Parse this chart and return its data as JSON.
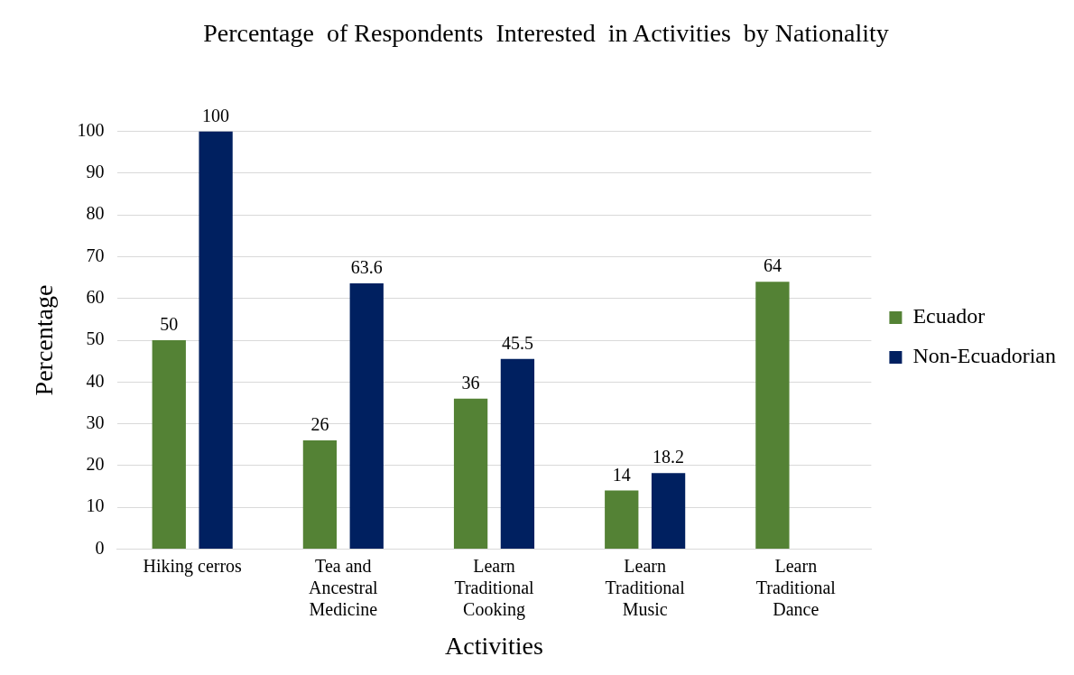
{
  "chart_data": {
    "type": "bar",
    "title": "Percentage  of Respondents  Interested  in Activities  by Nationality",
    "xlabel": "Activities",
    "ylabel": "Percentage",
    "categories": [
      "Hiking cerros",
      "Tea and Ancestral Medicine",
      "Learn Traditional Cooking",
      "Learn Traditional Music",
      "Learn Traditional Dance"
    ],
    "series": [
      {
        "name": "Ecuador",
        "color": "#548235",
        "values": [
          50,
          26,
          36,
          14,
          64
        ]
      },
      {
        "name": "Non-Ecuadorian",
        "color": "#002060",
        "values": [
          100,
          63.6,
          45.5,
          18.2,
          null
        ]
      }
    ],
    "ylim": [
      0,
      100
    ],
    "yticks": [
      0,
      10,
      20,
      30,
      40,
      50,
      60,
      70,
      80,
      90,
      100
    ],
    "grid": "y",
    "legend": "right",
    "data_labels": true
  }
}
